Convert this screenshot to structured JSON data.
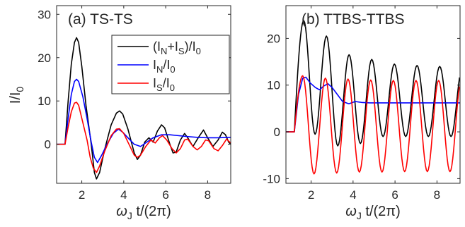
{
  "chart_data": [
    {
      "type": "line",
      "panel_label": "(a) TS-TS",
      "xlabel_main": "ω",
      "xlabel_sub": "J",
      "xlabel_rest": " t/(2π)",
      "ylabel_main": "I/I",
      "ylabel_sub": "0",
      "xlim": [
        0.8,
        9.1
      ],
      "ylim": [
        -9,
        32
      ],
      "xticks": [
        2,
        4,
        6,
        8
      ],
      "yticks": [
        0,
        10,
        20,
        30
      ],
      "legend": {
        "placement": "top-right",
        "entries": [
          {
            "main": "(I",
            "sub1": "N",
            "mid": "+I",
            "sub2": "S",
            "tail": ")/I",
            "sub3": "0",
            "color": "#000000"
          },
          {
            "main": "I",
            "sub1": "N",
            "mid": "/I",
            "sub2": "0",
            "color": "#0000ff"
          },
          {
            "main": "I",
            "sub1": "S",
            "mid": "/I",
            "sub2": "0",
            "color": "#ff0000"
          }
        ]
      },
      "series": [
        {
          "color": "#000000",
          "points": [
            [
              0.8,
              0
            ],
            [
              1.2,
              0
            ],
            [
              1.35,
              10
            ],
            [
              1.5,
              18.5
            ],
            [
              1.65,
              23.5
            ],
            [
              1.75,
              24.6
            ],
            [
              1.85,
              23.5
            ],
            [
              2.0,
              18
            ],
            [
              2.2,
              9
            ],
            [
              2.45,
              0
            ],
            [
              2.6,
              -6.5
            ],
            [
              2.7,
              -8
            ],
            [
              2.85,
              -6.5
            ],
            [
              3.1,
              -1
            ],
            [
              3.4,
              4.5
            ],
            [
              3.65,
              7.2
            ],
            [
              3.8,
              7.7
            ],
            [
              3.95,
              7
            ],
            [
              4.2,
              3.5
            ],
            [
              4.5,
              -2
            ],
            [
              4.65,
              -3.5
            ],
            [
              4.8,
              -2.5
            ],
            [
              5.0,
              0.5
            ],
            [
              5.2,
              1.5
            ],
            [
              5.4,
              0.5
            ],
            [
              5.6,
              3
            ],
            [
              5.8,
              4.5
            ],
            [
              5.95,
              3.8
            ],
            [
              6.2,
              0
            ],
            [
              6.35,
              -2
            ],
            [
              6.5,
              -1.8
            ],
            [
              6.7,
              1
            ],
            [
              6.9,
              2.5
            ],
            [
              7.05,
              1.5
            ],
            [
              7.3,
              -0.5
            ],
            [
              7.55,
              1.5
            ],
            [
              7.8,
              3.3
            ],
            [
              8.0,
              1.5
            ],
            [
              8.25,
              -0.5
            ],
            [
              8.5,
              1
            ],
            [
              8.7,
              2.8
            ],
            [
              8.85,
              2.2
            ],
            [
              9.0,
              0.5
            ],
            [
              9.1,
              0
            ]
          ]
        },
        {
          "color": "#0000ff",
          "points": [
            [
              0.8,
              0
            ],
            [
              1.2,
              0
            ],
            [
              1.35,
              6
            ],
            [
              1.5,
              11.5
            ],
            [
              1.65,
              14.5
            ],
            [
              1.75,
              15
            ],
            [
              1.85,
              14.5
            ],
            [
              2.05,
              11
            ],
            [
              2.25,
              6
            ],
            [
              2.45,
              0.5
            ],
            [
              2.6,
              -3
            ],
            [
              2.75,
              -4.2
            ],
            [
              2.95,
              -2.5
            ],
            [
              3.2,
              0
            ],
            [
              3.5,
              2.5
            ],
            [
              3.75,
              3.5
            ],
            [
              3.95,
              2.8
            ],
            [
              4.2,
              1.5
            ],
            [
              4.5,
              0
            ],
            [
              4.8,
              -0.5
            ],
            [
              5.1,
              0.5
            ],
            [
              5.4,
              1.5
            ],
            [
              5.8,
              2.2
            ],
            [
              6.2,
              2.2
            ],
            [
              6.6,
              2
            ],
            [
              7.0,
              1.8
            ],
            [
              7.5,
              1.6
            ],
            [
              8.0,
              1.5
            ],
            [
              8.5,
              1.5
            ],
            [
              9.0,
              1.6
            ],
            [
              9.1,
              1.6
            ]
          ]
        },
        {
          "color": "#ff0000",
          "points": [
            [
              0.8,
              0
            ],
            [
              1.2,
              0
            ],
            [
              1.35,
              4
            ],
            [
              1.5,
              7.5
            ],
            [
              1.65,
              9.5
            ],
            [
              1.75,
              9.7
            ],
            [
              1.85,
              9
            ],
            [
              2.05,
              5
            ],
            [
              2.25,
              1
            ],
            [
              2.4,
              -3
            ],
            [
              2.55,
              -5.5
            ],
            [
              2.7,
              -6.5
            ],
            [
              2.85,
              -5
            ],
            [
              3.1,
              -1.5
            ],
            [
              3.4,
              2
            ],
            [
              3.65,
              3.5
            ],
            [
              3.8,
              3.6
            ],
            [
              4.0,
              2.5
            ],
            [
              4.25,
              0
            ],
            [
              4.5,
              -2.5
            ],
            [
              4.65,
              -3
            ],
            [
              4.8,
              -2.5
            ],
            [
              5.05,
              -0.5
            ],
            [
              5.3,
              1
            ],
            [
              5.5,
              0.3
            ],
            [
              5.7,
              1.5
            ],
            [
              5.85,
              2
            ],
            [
              6.05,
              1
            ],
            [
              6.3,
              -1
            ],
            [
              6.5,
              -2
            ],
            [
              6.7,
              -1
            ],
            [
              6.9,
              1
            ],
            [
              7.05,
              1.2
            ],
            [
              7.3,
              -0.5
            ],
            [
              7.5,
              -1.3
            ],
            [
              7.7,
              -0.5
            ],
            [
              7.9,
              1
            ],
            [
              8.05,
              0.8
            ],
            [
              8.3,
              -1
            ],
            [
              8.5,
              -1.5
            ],
            [
              8.7,
              -0.3
            ],
            [
              8.9,
              1.2
            ],
            [
              9.1,
              0.3
            ]
          ]
        }
      ]
    },
    {
      "type": "line",
      "panel_label": "(b) TTBS-TTBS",
      "xlabel_main": "ω",
      "xlabel_sub": "J",
      "xlabel_rest": " t/(2π)",
      "xlim": [
        0.8,
        9.1
      ],
      "ylim": [
        -11,
        27
      ],
      "xticks": [
        2,
        4,
        6,
        8
      ],
      "yticks": [
        -10,
        0,
        10,
        20
      ],
      "black_osc": {
        "start": 1.2,
        "ramp_end": 1.65,
        "period": 1.08,
        "peaks": [
          23.8,
          20.5,
          16.5,
          15.5,
          14.5,
          14.2,
          14,
          13.8
        ],
        "troughs": [
          -0.5,
          -3,
          -2.5,
          -1,
          -1,
          -1,
          -1,
          -1
        ],
        "end": 9.1
      },
      "red_osc": {
        "start": 1.2,
        "ramp_end": 1.6,
        "period": 1.08,
        "peaks": [
          12,
          11.5,
          11.3,
          11.1,
          11,
          11,
          11,
          11
        ],
        "troughs": [
          -9,
          -8.8,
          -8.6,
          -8.6,
          -8.5,
          -8.5,
          -8.5,
          -8.5
        ],
        "end": 9.1
      },
      "series": [
        {
          "color": "#0000ff",
          "points": [
            [
              0.8,
              0
            ],
            [
              1.2,
              0
            ],
            [
              1.4,
              8
            ],
            [
              1.6,
              11.5
            ],
            [
              1.75,
              11.7
            ],
            [
              1.95,
              10.5
            ],
            [
              2.2,
              9.5
            ],
            [
              2.4,
              9
            ],
            [
              2.6,
              9.8
            ],
            [
              2.8,
              10.3
            ],
            [
              3.0,
              9.5
            ],
            [
              3.25,
              8
            ],
            [
              3.5,
              6.5
            ],
            [
              3.8,
              6
            ],
            [
              4.1,
              6.5
            ],
            [
              4.4,
              6.3
            ],
            [
              4.8,
              6.2
            ],
            [
              5.3,
              6.2
            ],
            [
              6.0,
              6.2
            ],
            [
              7.0,
              6.2
            ],
            [
              8.0,
              6.2
            ],
            [
              9.1,
              6.2
            ]
          ]
        }
      ]
    }
  ]
}
